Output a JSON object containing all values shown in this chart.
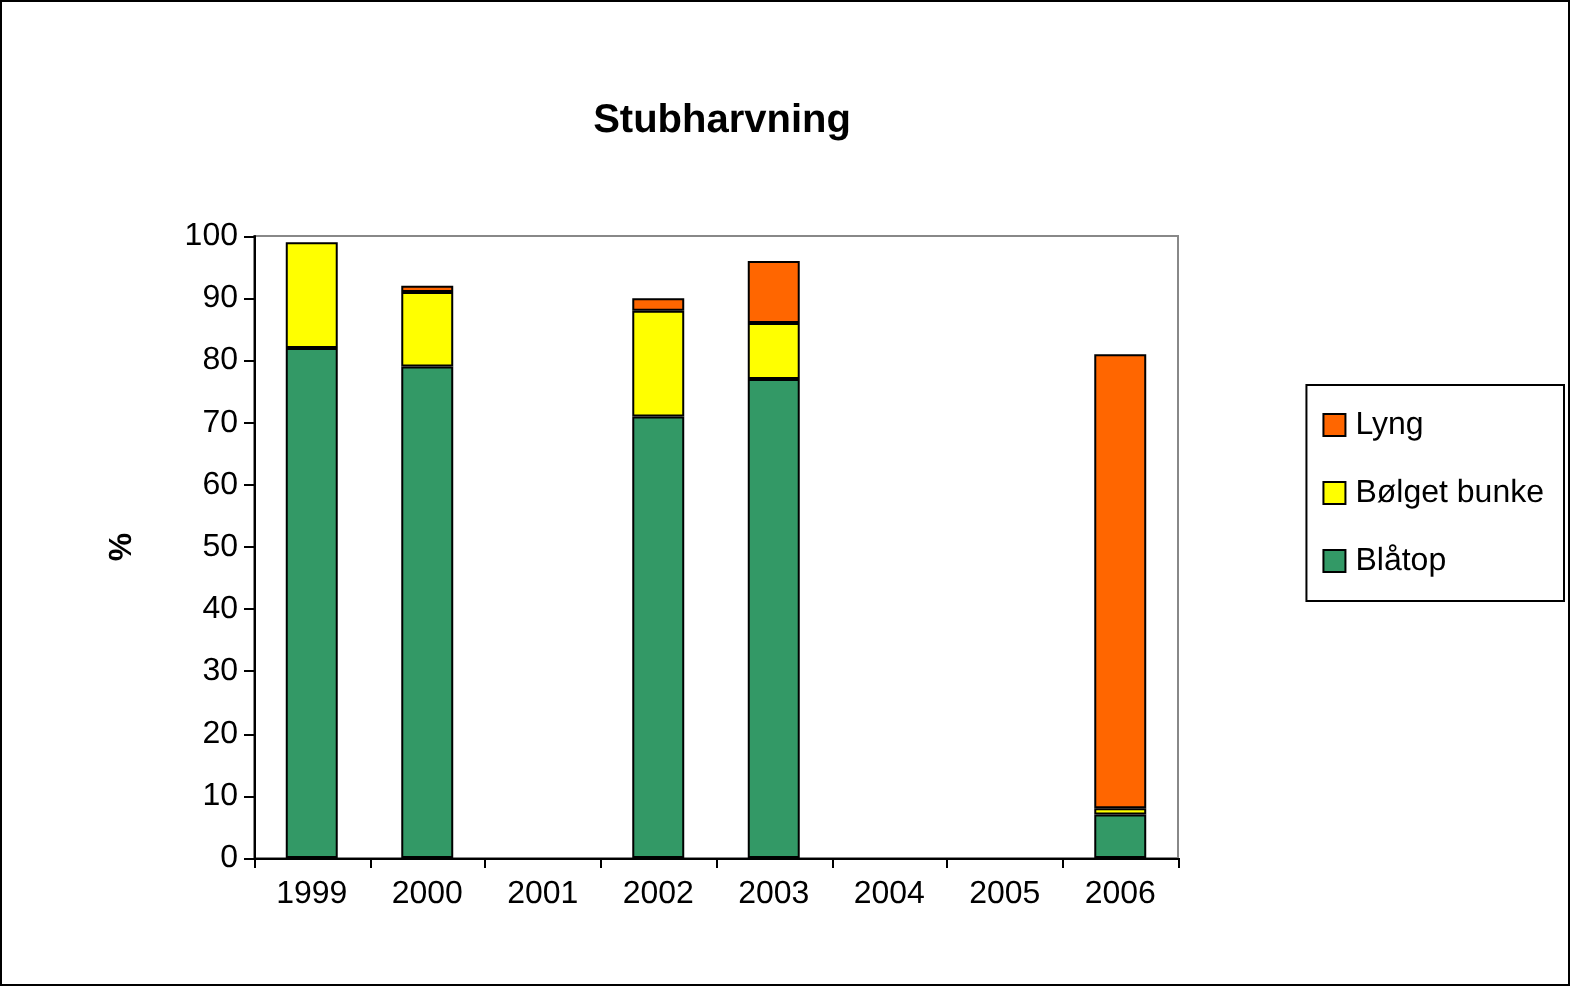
{
  "chart_data": {
    "type": "bar",
    "title": "Stubharvning",
    "ylabel": "%",
    "categories": [
      "1999",
      "2000",
      "2001",
      "2002",
      "2003",
      "2004",
      "2005",
      "2006"
    ],
    "stacked": true,
    "series": [
      {
        "name": "Blåtop",
        "color": "#339966",
        "values": [
          82,
          79,
          null,
          71,
          77,
          null,
          null,
          7
        ]
      },
      {
        "name": "Bølget bunke",
        "color": "#ffff00",
        "values": [
          17,
          12,
          null,
          17,
          9,
          null,
          null,
          1
        ]
      },
      {
        "name": "Lyng",
        "color": "#ff6600",
        "values": [
          null,
          1,
          null,
          2,
          10,
          null,
          null,
          73
        ]
      }
    ],
    "ylim": [
      0,
      100
    ],
    "yticks": [
      0,
      10,
      20,
      30,
      40,
      50,
      60,
      70,
      80,
      90,
      100
    ],
    "grid": false,
    "legend": "right"
  }
}
